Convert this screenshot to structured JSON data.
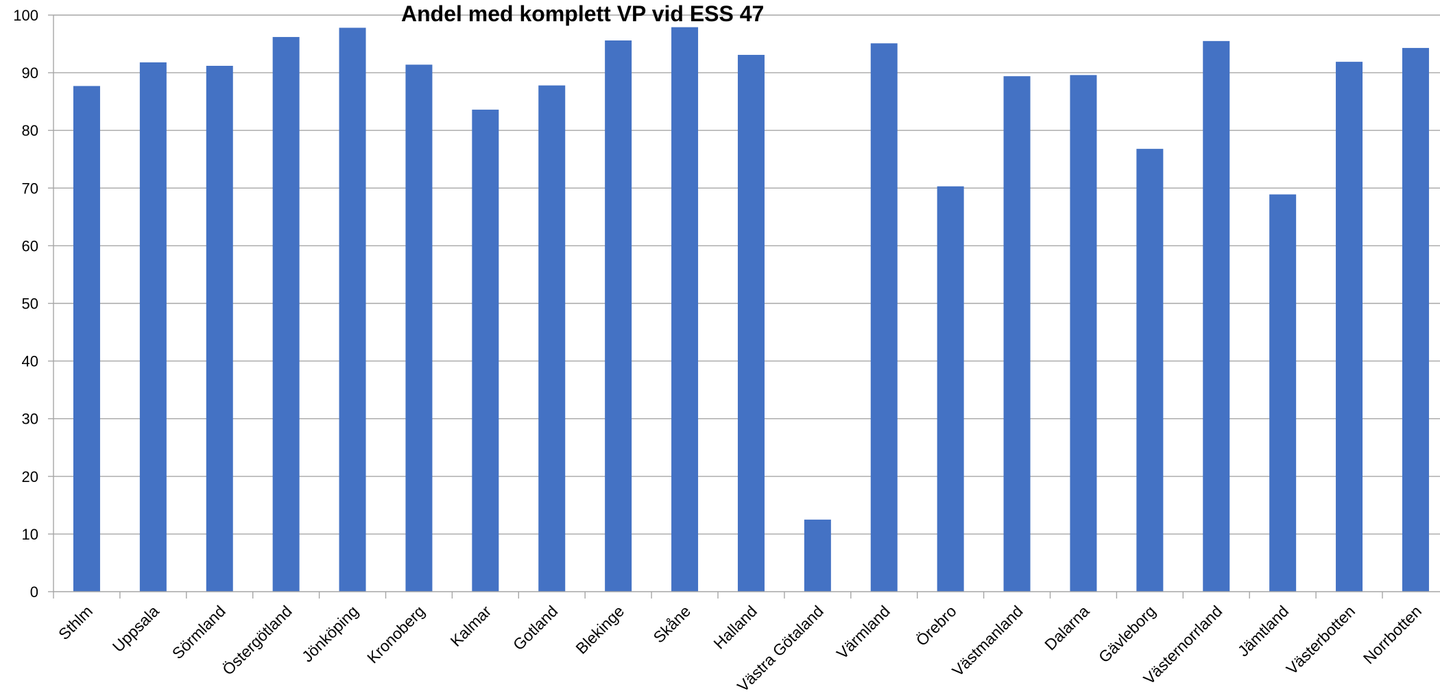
{
  "chart_data": {
    "type": "bar",
    "title": "Andel med komplett VP vid ESS 47",
    "xlabel": "",
    "ylabel": "",
    "ylim": [
      0,
      100
    ],
    "yticks": [
      0,
      10,
      20,
      30,
      40,
      50,
      60,
      70,
      80,
      90,
      100
    ],
    "grid": true,
    "legend": "none",
    "bar_color": "#4472c4",
    "grid_color": "#a6a6a6",
    "categories": [
      "Sthlm",
      "Uppsala",
      "Sörmland",
      "Östergötland",
      "Jönköping",
      "Kronoberg",
      "Kalmar",
      "Gotland",
      "Blekinge",
      "Skåne",
      "Halland",
      "Västra Götaland",
      "Värmland",
      "Örebro",
      "Västmanland",
      "Dalarna",
      "Gävleborg",
      "Västernorrland",
      "Jämtland",
      "Västerbotten",
      "Norrbotten"
    ],
    "values": [
      87.7,
      91.8,
      91.2,
      96.2,
      97.8,
      91.4,
      83.6,
      87.8,
      95.6,
      97.9,
      93.1,
      12.5,
      95.1,
      70.3,
      89.4,
      89.6,
      76.8,
      95.5,
      68.9,
      91.9,
      94.3
    ]
  }
}
